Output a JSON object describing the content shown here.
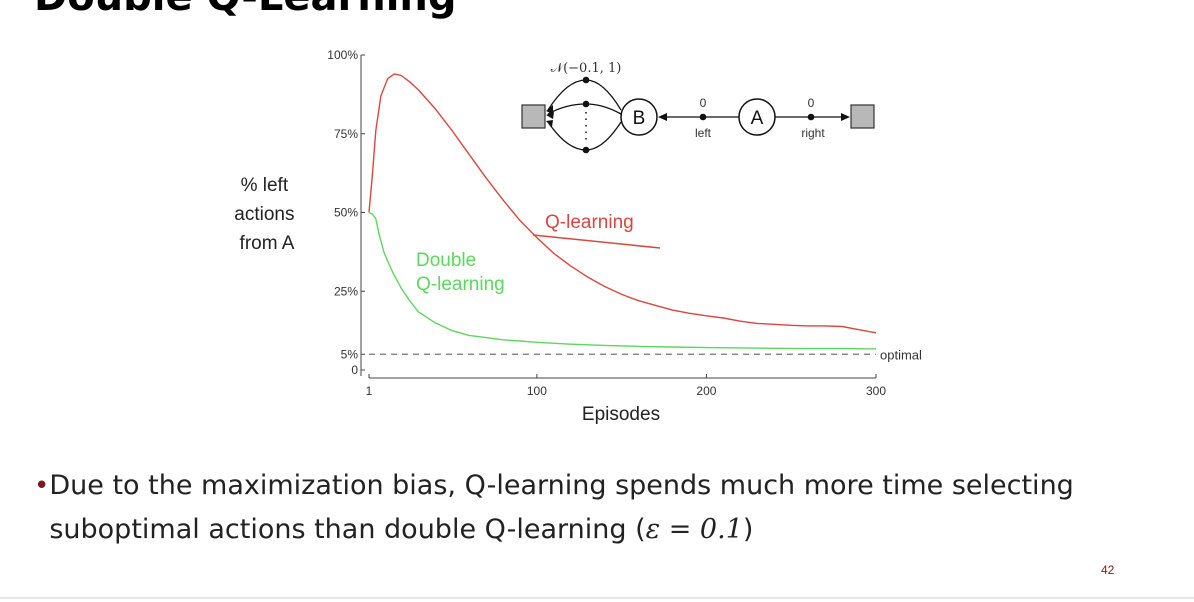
{
  "slide": {
    "title": "Double Q-Learning",
    "bullet_pre": "Due to the maximization bias, Q-learning spends much more time selecting suboptimal actions than double Q-learning (",
    "bullet_math": "ε = 0.1",
    "bullet_post": ")",
    "page_number": "42",
    "accent_color": "#7a1a1a"
  },
  "chart_data": {
    "type": "line",
    "xlabel": "Episodes",
    "ylabel": [
      "% left",
      "actions",
      "from A"
    ],
    "xlim": [
      1,
      300
    ],
    "ylim": [
      0,
      100
    ],
    "x_ticks": [
      {
        "v": 1,
        "label": "1"
      },
      {
        "v": 100,
        "label": "100"
      },
      {
        "v": 200,
        "label": "200"
      },
      {
        "v": 300,
        "label": "300"
      }
    ],
    "y_ticks": [
      {
        "v": 0,
        "label": "0"
      },
      {
        "v": 5,
        "label": "5%"
      },
      {
        "v": 25,
        "label": "25%"
      },
      {
        "v": 50,
        "label": "50%"
      },
      {
        "v": 75,
        "label": "75%"
      },
      {
        "v": 100,
        "label": "100%"
      }
    ],
    "reference_line": {
      "y": 5,
      "label": "optimal",
      "style": "dashed"
    },
    "series": [
      {
        "name": "Q-learning",
        "color": "#d9473f",
        "x": [
          1,
          3,
          5,
          8,
          12,
          16,
          20,
          25,
          30,
          40,
          50,
          60,
          70,
          80,
          90,
          100,
          110,
          120,
          130,
          140,
          150,
          160,
          170,
          180,
          190,
          200,
          210,
          220,
          230,
          240,
          250,
          260,
          270,
          280,
          290,
          300
        ],
        "y": [
          50,
          62,
          76,
          87,
          92.5,
          94,
          93.5,
          91.5,
          89,
          83,
          76,
          68.5,
          61,
          54,
          47.5,
          42,
          37,
          33,
          29.5,
          26.5,
          24,
          22,
          20.5,
          19,
          18,
          17.2,
          16.5,
          15.5,
          14.8,
          14.5,
          14.2,
          14,
          14,
          13.8,
          12.8,
          11.8
        ]
      },
      {
        "name": "Double Q-learning",
        "color": "#5fd65f",
        "x": [
          1,
          3,
          5,
          7,
          10,
          15,
          20,
          25,
          30,
          40,
          50,
          60,
          70,
          80,
          90,
          100,
          120,
          140,
          160,
          180,
          200,
          220,
          240,
          260,
          280,
          300
        ],
        "y": [
          50,
          49.5,
          48,
          43,
          37,
          31,
          26,
          22,
          18.5,
          15,
          12.5,
          11,
          10.3,
          9.6,
          9.2,
          8.8,
          8.2,
          7.8,
          7.5,
          7.3,
          7.1,
          7,
          6.9,
          6.8,
          6.8,
          6.7
        ]
      }
    ],
    "inset_diagram": {
      "distribution_label": "𝒩(−0.1, 1)",
      "node_b": "B",
      "node_a": "A",
      "left_reward": "0",
      "left_label": "left",
      "right_reward": "0",
      "right_label": "right"
    },
    "grid": false
  }
}
